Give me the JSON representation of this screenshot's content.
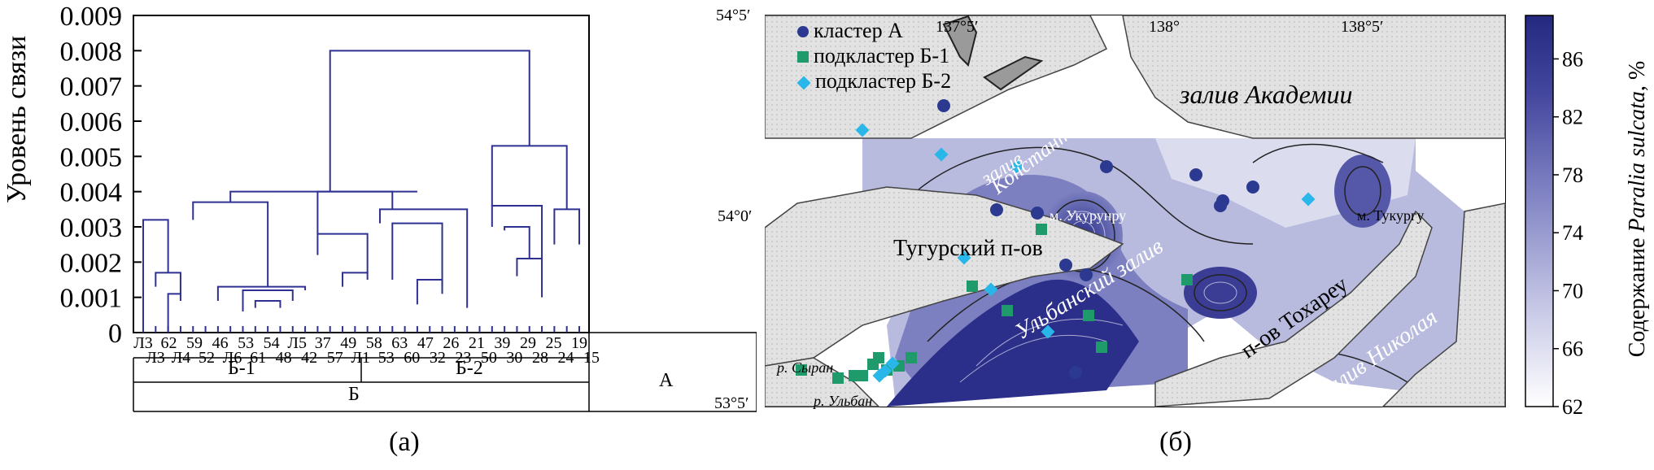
{
  "dendrogram": {
    "ylabel": "Уровень связи",
    "yticks": [
      "0.009",
      "0.008",
      "0.007",
      "0.006",
      "0.005",
      "0.004",
      "0.003",
      "0.002",
      "0.001",
      "0"
    ],
    "leaves_top": [
      "Л3",
      "62",
      "59",
      "46",
      "53",
      "54",
      "Л5",
      "37",
      "49",
      "58",
      "63",
      "47",
      "26",
      "21",
      "39",
      "29",
      "25",
      "19"
    ],
    "leaves_bottom": [
      "Л3",
      "Л4",
      "52",
      "Л6",
      "61",
      "48",
      "42",
      "57",
      "Л1",
      "53",
      "60",
      "32",
      "23",
      "50",
      "30",
      "28",
      "24",
      "15"
    ],
    "groups_row1": [
      "Б-1",
      "Б-2"
    ],
    "groups_row2": [
      "Б",
      "А"
    ],
    "caption": "(а)"
  },
  "map": {
    "legend": [
      {
        "label": "кластер А",
        "marker": "circle",
        "color": "#2b3990"
      },
      {
        "label": "подкластер Б-1",
        "marker": "square",
        "color": "#1f9a6a"
      },
      {
        "label": "подкластер Б-2",
        "marker": "diamond",
        "color": "#29b6e8"
      }
    ],
    "lon_labels": [
      "137°5′",
      "138°",
      "138°5′"
    ],
    "lat_labels": [
      "54°5′",
      "54°0′",
      "53°5′"
    ],
    "places": {
      "gulf_academy": "залив Академии",
      "gulf": "залив",
      "konstantina": "Константина",
      "cape_ukurunru": "м. Укурунру",
      "cape_tukurgu": "м. Тукургу",
      "tugur": "Тугурский п-ов",
      "ulban_gulf": "Ульбанский залив",
      "tokhareu": "п-ов Тохареу",
      "nikolaya": "залив Николая",
      "syran": "р. Сыран",
      "ulban_river": "р. Ульбан"
    },
    "colorbar": {
      "label_prefix": "Содержание",
      "label_species": "Paralia sulcata",
      "label_suffix": ", %",
      "ticks": [
        "86",
        "82",
        "78",
        "74",
        "70",
        "66",
        "62"
      ],
      "min": 62,
      "max": 89
    },
    "caption": "(б)"
  },
  "colors": {
    "dendro_line": "#2e3192",
    "water_dark": "#2b2f8a",
    "land": "#d9d9d9"
  },
  "chart_data": {
    "type": "dendrogram",
    "ylabel": "Уровень связи",
    "ylim": [
      0,
      0.009
    ],
    "clusters": [
      "Б-1",
      "Б-2",
      "А"
    ],
    "merge_heights": {
      "root": 0.008,
      "B": 0.004,
      "A": 0.0053,
      "B1": 0.0037,
      "B2": 0.004
    }
  }
}
